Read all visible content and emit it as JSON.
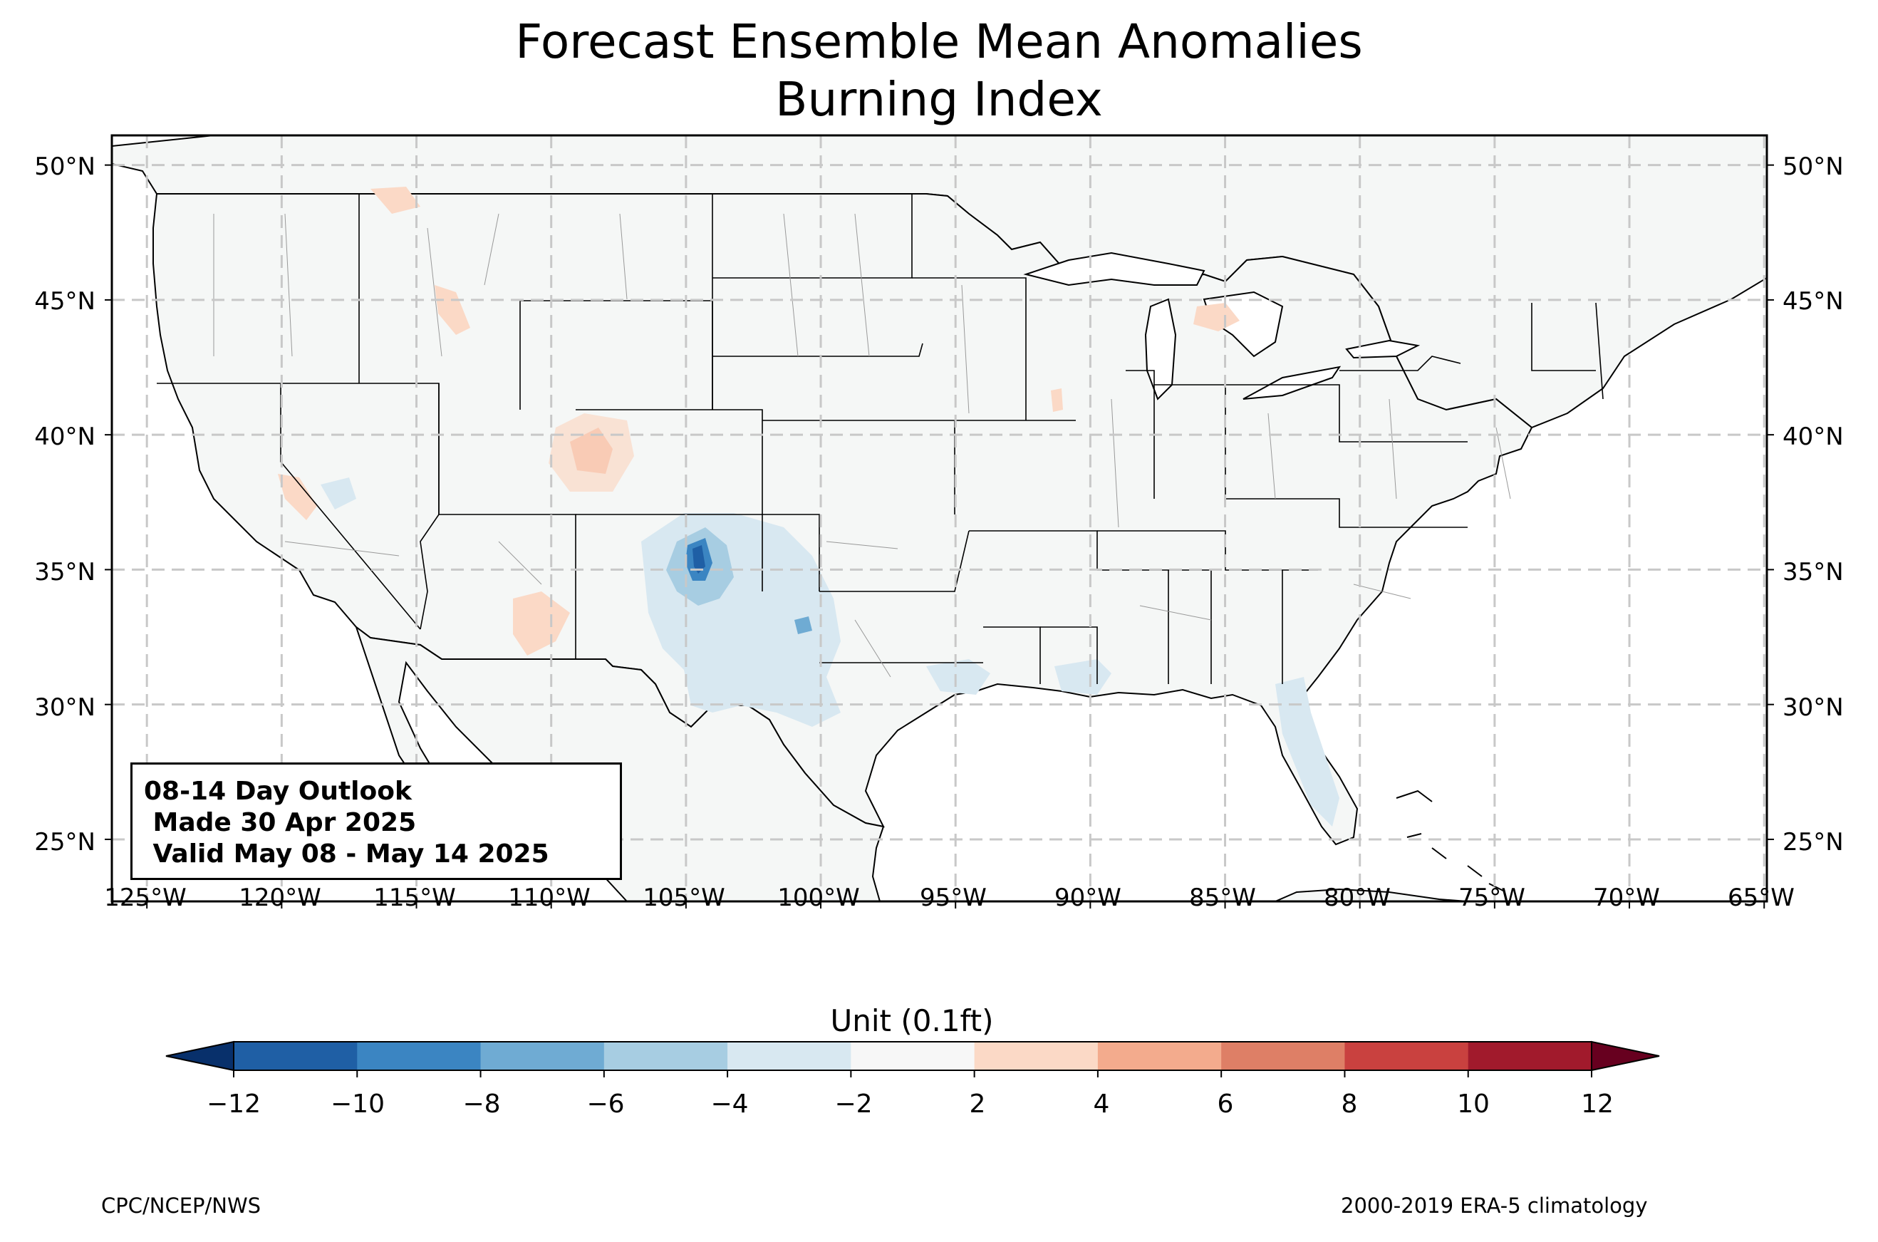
{
  "title": {
    "line1": "Forecast Ensemble Mean Anomalies",
    "line2": "Burning Index"
  },
  "map": {
    "lon_range": [
      -126.3,
      -64.9
    ],
    "lat_range": [
      22.7,
      51.1
    ],
    "lat_ticks": [
      "50°N",
      "45°N",
      "40°N",
      "35°N",
      "30°N",
      "25°N"
    ],
    "lon_ticks": [
      "125°W",
      "120°W",
      "115°W",
      "110°W",
      "105°W",
      "100°W",
      "95°W",
      "90°W",
      "85°W",
      "80°W",
      "75°W",
      "70°W",
      "65°W"
    ],
    "land_color": "#f5f7f6",
    "grid": "dashed"
  },
  "outlook": {
    "line1": "08-14 Day Outlook",
    "line2": " Made 30 Apr 2025",
    "line3": " Valid May 08 - May 14 2025"
  },
  "colorbar": {
    "title": "Unit (0.1ft)",
    "ticks": [
      "−12",
      "−10",
      "−8",
      "−6",
      "−4",
      "−2",
      "2",
      "4",
      "6",
      "8",
      "10",
      "12"
    ],
    "colors": [
      "#08306b",
      "#1f5fa5",
      "#3b85c2",
      "#6fabd3",
      "#a7cde2",
      "#d8e8f1",
      "#f7f7f7",
      "#fbd9c6",
      "#f3ab8d",
      "#de7f66",
      "#c9413f",
      "#a11a2c",
      "#67001f"
    ]
  },
  "footer": {
    "left": "CPC/NCEP/NWS",
    "right": "2000-2019 ERA-5 climatology"
  }
}
